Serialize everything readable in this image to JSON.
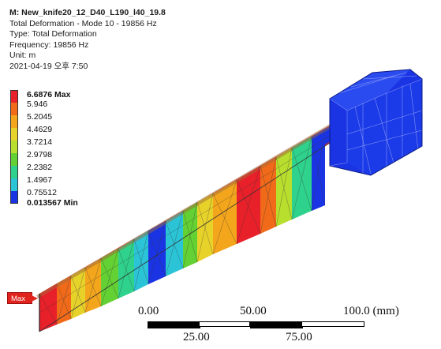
{
  "info": {
    "title": "M: New_knife20_12_D40_L190_l40_19.8",
    "line1": "Total Deformation - Mode 10 - 19856 Hz",
    "line2": "Type: Total Deformation",
    "line3": "Frequency: 19856 Hz",
    "line4": "Unit: m",
    "line5": "2021-04-19 오후 7:50"
  },
  "legend": {
    "labels": [
      "6.6876 Max",
      "5.946",
      "5.2045",
      "4.4629",
      "3.7214",
      "2.9798",
      "2.2382",
      "1.4967",
      "0.75512",
      "0.013567 Min"
    ],
    "colors": [
      "#e8202a",
      "#f06a1a",
      "#f3a51c",
      "#e7d22a",
      "#b8de2e",
      "#63d133",
      "#2fd28c",
      "#2bc4d6",
      "#1c86e5",
      "#1a34e4"
    ]
  },
  "probe": {
    "label": "Max"
  },
  "scale": {
    "top_labels": [
      "0.00",
      "50.00",
      "100.0 (mm)"
    ],
    "bottom_labels": [
      "25.00",
      "75.00"
    ]
  }
}
